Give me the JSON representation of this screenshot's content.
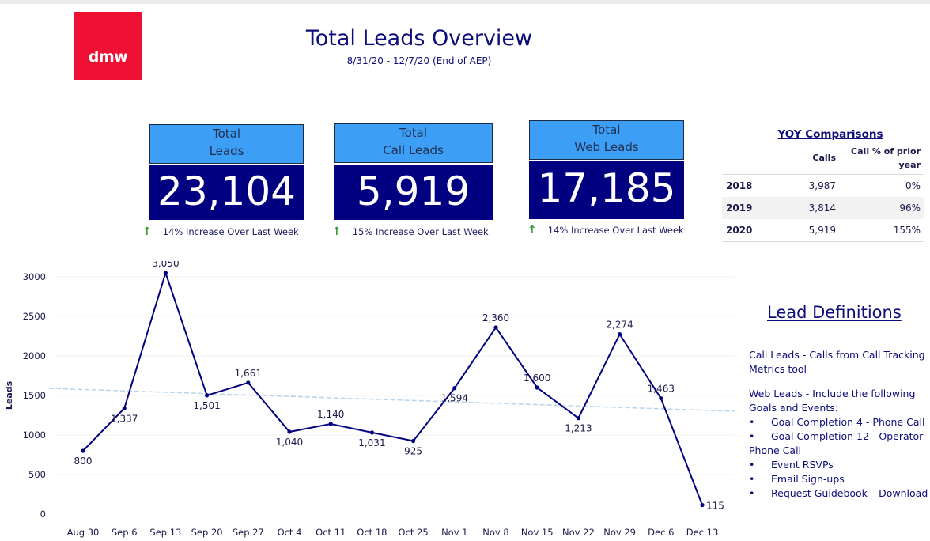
{
  "logo": {
    "text": "dmw"
  },
  "header": {
    "title": "Total Leads Overview",
    "subtitle": "8/31/20 - 12/7/20 (End of AEP)"
  },
  "kpis": [
    {
      "line1": "Total",
      "line2": "Leads",
      "value": "23,104",
      "note": "14% Increase Over Last Week",
      "note_icon": "arrow-up-icon"
    },
    {
      "line1": "Total",
      "line2": "Call Leads",
      "value": "5,919",
      "note": "15% Increase Over Last Week",
      "note_icon": "arrow-up-icon"
    },
    {
      "line1": "Total",
      "line2": "Web Leads",
      "value": "17,185",
      "note": "14% Increase Over Last Week",
      "note_icon": "arrow-up-icon"
    }
  ],
  "yoy": {
    "title": "YOY Comparisons",
    "col_calls": "Calls",
    "col_pct_1": "Call % of prior",
    "col_pct_2": "year",
    "rows": [
      {
        "year": "2018",
        "calls": "3,987",
        "pct": "0%"
      },
      {
        "year": "2019",
        "calls": "3,814",
        "pct": "96%"
      },
      {
        "year": "2020",
        "calls": "5,919",
        "pct": "155%"
      }
    ]
  },
  "definitions": {
    "title": "Lead Definitions",
    "call_label": "Call Leads",
    "call_text_1": " - Calls from Call Tracking",
    "call_text_2": "Metrics tool",
    "web_label": "Web Leads",
    "web_text_1": " - Include the following",
    "web_text_2": "Goals and Events:",
    "bullet": "•",
    "items": [
      "Goal Completion 4 - Phone Call",
      "Goal Completion 12 - Operator",
      "Event RSVPs",
      "Email Sign-ups",
      "Request Guidebook – Download"
    ],
    "item2_cont": "Phone Call"
  },
  "colors": {
    "navy": "#000080",
    "kpi_header": "#3d9ef5",
    "brand_red": "#ee1133",
    "arrow_green": "#3a9a3a",
    "trend": "#b8d4ea"
  },
  "chart_data": {
    "type": "line",
    "ylabel": "Leads",
    "xlabel": "",
    "categories": [
      "Aug 30",
      "Sep 6",
      "Sep 13",
      "Sep 20",
      "Sep 27",
      "Oct 4",
      "Oct 11",
      "Oct 18",
      "Oct 25",
      "Nov 1",
      "Nov 8",
      "Nov 15",
      "Nov 22",
      "Nov 29",
      "Dec 6",
      "Dec 13"
    ],
    "values": [
      800,
      1337,
      3050,
      1501,
      1661,
      1040,
      1140,
      1031,
      925,
      1594,
      2360,
      1600,
      1213,
      2274,
      1463,
      115
    ],
    "data_labels": [
      "800",
      "1,337",
      "3,050",
      "1,501",
      "1,661",
      "1,040",
      "1,140",
      "1,031",
      "925",
      "1,594",
      "2,360",
      "1,600",
      "1,213",
      "2,274",
      "1,463",
      "115"
    ],
    "label_position": [
      "below",
      "below",
      "above",
      "below",
      "above",
      "below",
      "above",
      "below",
      "below",
      "below",
      "above",
      "above",
      "below",
      "above",
      "above",
      "right"
    ],
    "yticks": [
      0,
      500,
      1000,
      1500,
      2000,
      2500,
      3000
    ],
    "ylim": [
      0,
      3200
    ],
    "trend_line": {
      "start": 1590,
      "end": 1300
    },
    "grid": true,
    "legend": "none"
  }
}
